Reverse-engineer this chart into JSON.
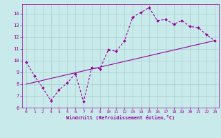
{
  "xlabel": "Windchill (Refroidissement éolien,°C)",
  "bg_color": "#c8eaea",
  "line_color": "#990099",
  "grid_color": "#aacccc",
  "xlim": [
    -0.5,
    23.5
  ],
  "ylim": [
    6,
    14.8
  ],
  "xticks": [
    0,
    1,
    2,
    3,
    4,
    5,
    6,
    7,
    8,
    9,
    10,
    11,
    12,
    13,
    14,
    15,
    16,
    17,
    18,
    19,
    20,
    21,
    22,
    23
  ],
  "yticks": [
    6,
    7,
    8,
    9,
    10,
    11,
    12,
    13,
    14
  ],
  "line1_x": [
    0,
    1,
    2,
    3,
    4,
    5,
    6,
    7,
    8,
    9,
    10,
    11,
    12,
    13,
    14,
    15,
    16,
    17,
    18,
    19,
    20,
    21,
    22,
    23
  ],
  "line1_y": [
    9.9,
    8.7,
    7.7,
    6.6,
    7.5,
    8.1,
    8.9,
    6.5,
    9.4,
    9.3,
    10.9,
    10.8,
    11.7,
    13.7,
    14.1,
    14.5,
    13.4,
    13.5,
    13.1,
    13.4,
    12.9,
    12.8,
    12.2,
    11.7
  ],
  "line2_x": [
    0,
    23
  ],
  "line2_y": [
    8.0,
    11.7
  ]
}
